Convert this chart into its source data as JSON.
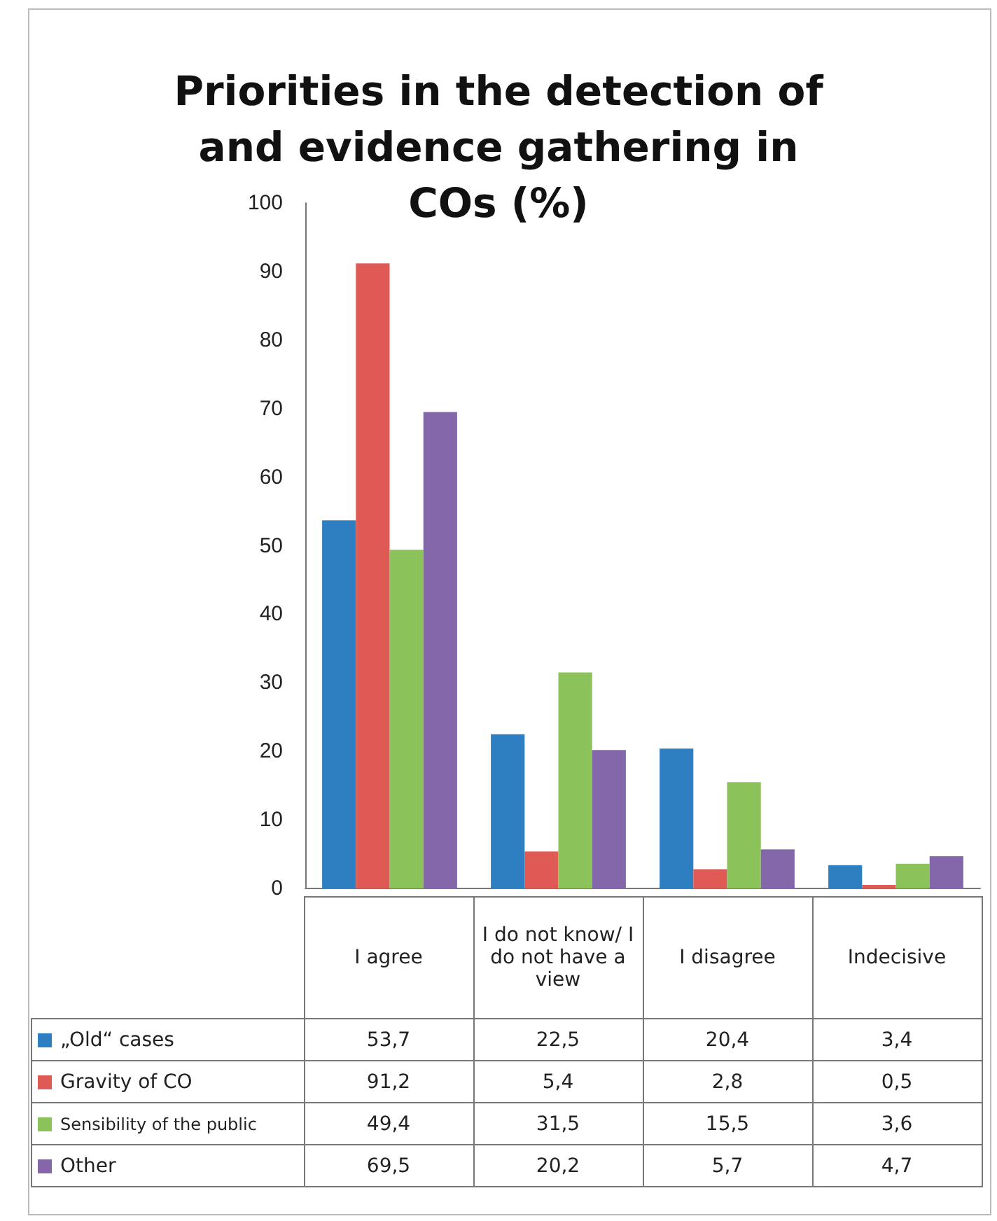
{
  "chart_data": {
    "type": "bar",
    "title": "Priorities in the detection of and evidence gathering in COs (%)",
    "categories": [
      "I agree",
      "I do not know/ I do not have a view",
      "I disagree",
      "Indecisive"
    ],
    "series": [
      {
        "name": "„Old“ cases",
        "color": "#2e7fc2",
        "values": [
          53.7,
          22.5,
          20.4,
          3.4
        ],
        "value_labels": [
          "53,7",
          "22,5",
          "20,4",
          "3,4"
        ]
      },
      {
        "name": "Gravity of CO",
        "color": "#e05a55",
        "values": [
          91.2,
          5.4,
          2.8,
          0.5
        ],
        "value_labels": [
          "91,2",
          "5,4",
          "2,8",
          "0,5"
        ]
      },
      {
        "name": "Sensibility of the public",
        "color": "#8bc25a",
        "values": [
          49.4,
          31.5,
          15.5,
          3.6
        ],
        "value_labels": [
          "49,4",
          "31,5",
          "15,5",
          "3,6"
        ]
      },
      {
        "name": "Other",
        "color": "#8467ab",
        "values": [
          69.5,
          20.2,
          5.7,
          4.7
        ],
        "value_labels": [
          "69,5",
          "20,2",
          "5,7",
          "4,7"
        ]
      }
    ],
    "ylim": [
      0,
      100
    ],
    "yticks": [
      0,
      10,
      20,
      30,
      40,
      50,
      60,
      70,
      80,
      90,
      100
    ],
    "legend": "bottom",
    "grid": false
  }
}
